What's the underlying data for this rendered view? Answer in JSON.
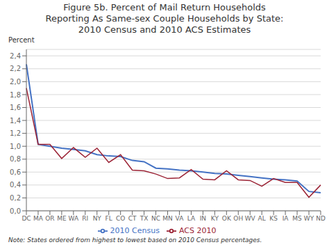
{
  "chart_data": {
    "type": "line",
    "title": "Figure 5b. Percent of Mail Return Households\nReporting As Same-sex Couple Households by State:\n2010 Census and 2010 ACS Estimates",
    "y_label": "Percent",
    "annotations": [
      "Note: States ordered from highest to lowest based on 2010 Census percentages."
    ],
    "categories": [
      "DC",
      "MA",
      "OR",
      "ME",
      "WA",
      "RI",
      "NY",
      "FL",
      "CO",
      "CT",
      "TX",
      "NC",
      "MN",
      "VA",
      "LA",
      "IN",
      "KY",
      "OK",
      "OH",
      "WV",
      "AL",
      "KS",
      "IA",
      "MS",
      "WY",
      "ND"
    ],
    "series": [
      {
        "name": "2010 Census",
        "color": "#4472C4",
        "values": [
          2.27,
          1.03,
          1.0,
          0.97,
          0.95,
          0.93,
          0.87,
          0.85,
          0.84,
          0.78,
          0.76,
          0.66,
          0.65,
          0.63,
          0.62,
          0.6,
          0.58,
          0.57,
          0.55,
          0.53,
          0.51,
          0.49,
          0.48,
          0.46,
          0.3,
          0.28
        ]
      },
      {
        "name": "ACS 2010",
        "color": "#9B2335",
        "values": [
          1.9,
          1.03,
          1.03,
          0.81,
          0.98,
          0.83,
          0.97,
          0.75,
          0.87,
          0.63,
          0.62,
          0.57,
          0.5,
          0.51,
          0.64,
          0.49,
          0.48,
          0.62,
          0.48,
          0.47,
          0.38,
          0.5,
          0.44,
          0.44,
          0.21,
          0.4
        ]
      }
    ],
    "ylim": [
      0.0,
      2.5
    ],
    "yticks": [
      {
        "value": 0.0,
        "label": "0,0"
      },
      {
        "value": 0.2,
        "label": "0,2"
      },
      {
        "value": 0.4,
        "label": "0,4"
      },
      {
        "value": 0.6,
        "label": "0,6"
      },
      {
        "value": 0.8,
        "label": "0,8"
      },
      {
        "value": 1.0,
        "label": "1,0"
      },
      {
        "value": 1.2,
        "label": "1,2"
      },
      {
        "value": 1.4,
        "label": "1,4"
      },
      {
        "value": 1.6,
        "label": "1,6"
      },
      {
        "value": 1.8,
        "label": "1,8"
      },
      {
        "value": 2.0,
        "label": "2,0"
      },
      {
        "value": 2.2,
        "label": "2,2"
      },
      {
        "value": 2.4,
        "label": "2,4"
      }
    ],
    "grid": true,
    "legend": "bottom"
  }
}
